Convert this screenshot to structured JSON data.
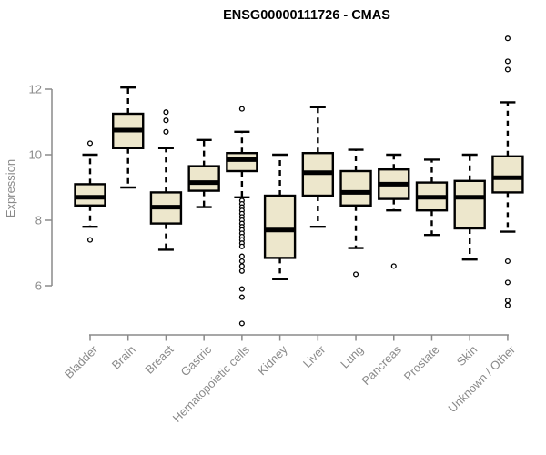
{
  "chart_data": {
    "type": "boxplot",
    "title": "ENSG00000111726 - CMAS",
    "ylabel": "Expression",
    "xlabel": "",
    "yticks": [
      6,
      8,
      10,
      12
    ],
    "ylim": [
      4.5,
      13.9
    ],
    "grid": false,
    "legend": "none",
    "categories": [
      "Bladder",
      "Brain",
      "Breast",
      "Gastric",
      "Hematopoietic cells",
      "Kidney",
      "Liver",
      "Lung",
      "Pancreas",
      "Prostate",
      "Skin",
      "Unknown / Other"
    ],
    "series": [
      {
        "name": "Bladder",
        "whisker_low": 7.8,
        "q1": 8.45,
        "median": 8.7,
        "q3": 9.1,
        "whisker_high": 10.0,
        "outliers": [
          10.35,
          7.4
        ]
      },
      {
        "name": "Brain",
        "whisker_low": 9.0,
        "q1": 10.2,
        "median": 10.75,
        "q3": 11.25,
        "whisker_high": 12.05,
        "outliers": []
      },
      {
        "name": "Breast",
        "whisker_low": 7.1,
        "q1": 7.9,
        "median": 8.4,
        "q3": 8.85,
        "whisker_high": 10.2,
        "outliers": [
          11.3,
          11.05,
          10.7
        ]
      },
      {
        "name": "Gastric",
        "whisker_low": 8.4,
        "q1": 8.9,
        "median": 9.15,
        "q3": 9.65,
        "whisker_high": 10.45,
        "outliers": []
      },
      {
        "name": "Hematopoietic cells",
        "whisker_low": 8.7,
        "q1": 9.5,
        "median": 9.85,
        "q3": 10.05,
        "whisker_high": 10.7,
        "outliers": [
          11.4,
          8.6,
          8.5,
          8.4,
          8.3,
          8.2,
          8.1,
          8.0,
          7.9,
          7.8,
          7.7,
          7.6,
          7.5,
          7.4,
          7.3,
          7.2,
          6.9,
          6.75,
          6.6,
          6.45,
          5.9,
          5.65,
          4.85
        ]
      },
      {
        "name": "Kidney",
        "whisker_low": 6.2,
        "q1": 6.85,
        "median": 7.7,
        "q3": 8.75,
        "whisker_high": 10.0,
        "outliers": []
      },
      {
        "name": "Liver",
        "whisker_low": 7.8,
        "q1": 8.75,
        "median": 9.45,
        "q3": 10.05,
        "whisker_high": 11.45,
        "outliers": []
      },
      {
        "name": "Lung",
        "whisker_low": 7.15,
        "q1": 8.45,
        "median": 8.85,
        "q3": 9.5,
        "whisker_high": 10.15,
        "outliers": [
          6.35
        ]
      },
      {
        "name": "Pancreas",
        "whisker_low": 8.3,
        "q1": 8.65,
        "median": 9.1,
        "q3": 9.55,
        "whisker_high": 10.0,
        "outliers": [
          6.6
        ]
      },
      {
        "name": "Prostate",
        "whisker_low": 7.55,
        "q1": 8.3,
        "median": 8.7,
        "q3": 9.15,
        "whisker_high": 9.85,
        "outliers": []
      },
      {
        "name": "Skin",
        "whisker_low": 6.8,
        "q1": 7.75,
        "median": 8.7,
        "q3": 9.2,
        "whisker_high": 10.0,
        "outliers": []
      },
      {
        "name": "Unknown / Other",
        "whisker_low": 7.65,
        "q1": 8.85,
        "median": 9.3,
        "q3": 9.95,
        "whisker_high": 11.6,
        "outliers": [
          13.55,
          12.85,
          12.6,
          6.75,
          6.1,
          5.55,
          5.4
        ]
      }
    ],
    "colors": {
      "box_fill": "#EDE7CC",
      "box_border": "#000000",
      "median": "#000000",
      "whisker": "#000000",
      "outlier": "#000000",
      "axis": "#8A8A8A",
      "tick_label": "#8A8A8A",
      "title": "#000000",
      "background": "#FFFFFF"
    }
  }
}
